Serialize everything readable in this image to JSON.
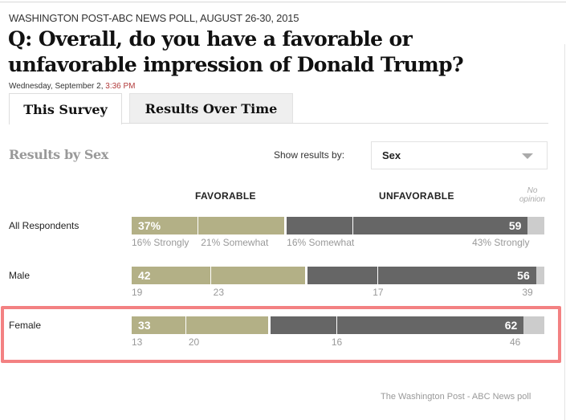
{
  "header": {
    "kicker": "WASHINGTON POST-ABC NEWS POLL, AUGUST 26-30, 2015",
    "question": "Q: Overall, do you have a favorable or unfavorable impression of Donald Trump?",
    "date": "Wednesday, September 2,",
    "time": "3:36 PM"
  },
  "tabs": [
    {
      "label": "This Survey",
      "active": true
    },
    {
      "label": "Results Over Time",
      "active": false
    }
  ],
  "controls": {
    "section_title": "Results by Sex",
    "show_label": "Show results by:",
    "selected": "Sex"
  },
  "colors": {
    "favorable": "#b3b086",
    "unfavorable": "#666666",
    "no_opinion": "#cccccc",
    "highlight": "#f38182"
  },
  "chart_data": {
    "type": "bar",
    "orientation": "horizontal-stacked",
    "title": "Results by Sex",
    "columns": {
      "favorable": "FAVORABLE",
      "unfavorable": "UNFAVORABLE",
      "no_opinion": "No opinion"
    },
    "categories": [
      "All Respondents",
      "Male",
      "Female"
    ],
    "rows": [
      {
        "label": "All Respondents",
        "favorable": 37,
        "favorable_label": "37%",
        "unfavorable": 59,
        "unfavorable_label": "59",
        "no_opinion": 4,
        "fav_strongly": 16,
        "fav_somewhat": 21,
        "unf_somewhat": 16,
        "unf_strongly": 43,
        "sub_labels": [
          "16% Strongly",
          "21% Somewhat",
          "16% Somewhat",
          "43% Strongly"
        ],
        "highlighted": false
      },
      {
        "label": "Male",
        "favorable": 42,
        "favorable_label": "42",
        "unfavorable": 56,
        "unfavorable_label": "56",
        "no_opinion": 2,
        "fav_strongly": 19,
        "fav_somewhat": 23,
        "unf_somewhat": 17,
        "unf_strongly": 39,
        "sub_labels": [
          "19",
          "23",
          "17",
          "39"
        ],
        "highlighted": false
      },
      {
        "label": "Female",
        "favorable": 33,
        "favorable_label": "33",
        "unfavorable": 62,
        "unfavorable_label": "62",
        "no_opinion": 5,
        "fav_strongly": 13,
        "fav_somewhat": 20,
        "unf_somewhat": 16,
        "unf_strongly": 46,
        "sub_labels": [
          "13",
          "20",
          "16",
          "46"
        ],
        "highlighted": true
      }
    ],
    "xlim": [
      0,
      100
    ]
  },
  "footer": {
    "credit": "The Washington Post - ABC News poll"
  }
}
